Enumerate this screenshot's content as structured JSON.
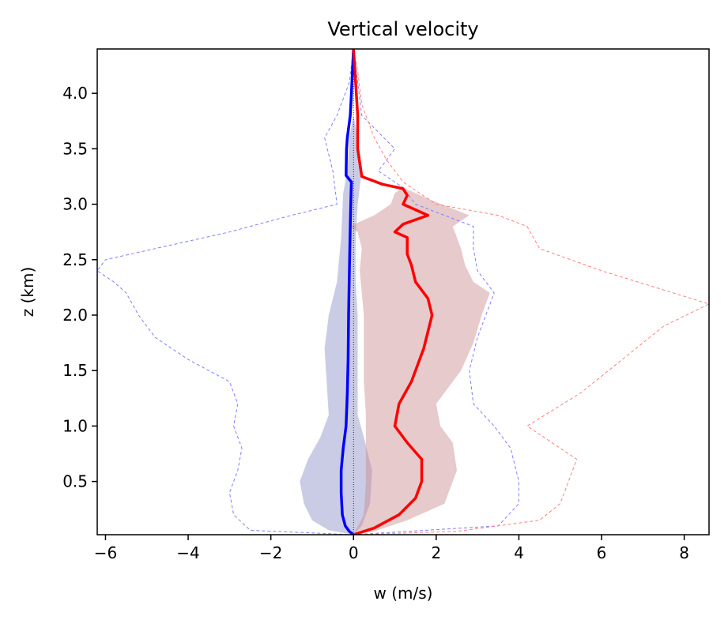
{
  "chart_data": {
    "type": "line",
    "title": "Vertical velocity",
    "xlabel": "w (m/s)",
    "ylabel": "z (km)",
    "xlim": [
      -6.2,
      8.6
    ],
    "ylim": [
      0.02,
      4.4
    ],
    "xticks": [
      -6,
      -4,
      -2,
      0,
      2,
      4,
      6,
      8
    ],
    "xtick_labels": [
      "−6",
      "−4",
      "−2",
      "0",
      "2",
      "4",
      "6",
      "8"
    ],
    "yticks": [
      0.5,
      1.0,
      1.5,
      2.0,
      2.5,
      3.0,
      3.5,
      4.0
    ],
    "ytick_labels": [
      "0.5",
      "1.0",
      "1.5",
      "2.0",
      "2.5",
      "3.0",
      "3.5",
      "4.0"
    ],
    "grid": false,
    "legend": "none",
    "colors": {
      "down_mean": "#0000ff",
      "up_mean": "#ff0000",
      "down_band": "#8a8fc6",
      "up_band": "#c98a8e",
      "down_extreme": "#8080ff",
      "up_extreme": "#ff8080",
      "zero_line": "#000000"
    },
    "series": [
      {
        "kind": "mean",
        "color_key": "down_mean",
        "points": [
          [
            0.0,
            0.02
          ],
          [
            -0.1,
            0.05
          ],
          [
            -0.2,
            0.1
          ],
          [
            -0.27,
            0.2
          ],
          [
            -0.3,
            0.4
          ],
          [
            -0.3,
            0.6
          ],
          [
            -0.25,
            0.8
          ],
          [
            -0.18,
            1.0
          ],
          [
            -0.15,
            1.3
          ],
          [
            -0.13,
            1.6
          ],
          [
            -0.12,
            2.0
          ],
          [
            -0.1,
            2.4
          ],
          [
            -0.08,
            2.8
          ],
          [
            -0.06,
            3.1
          ],
          [
            -0.05,
            3.2
          ],
          [
            -0.18,
            3.26
          ],
          [
            -0.17,
            3.5
          ],
          [
            -0.15,
            3.6
          ],
          [
            -0.08,
            3.8
          ],
          [
            -0.05,
            4.0
          ],
          [
            0.0,
            4.4
          ]
        ]
      },
      {
        "kind": "mean",
        "color_key": "up_mean",
        "points": [
          [
            0.0,
            0.02
          ],
          [
            0.5,
            0.08
          ],
          [
            1.1,
            0.2
          ],
          [
            1.5,
            0.35
          ],
          [
            1.65,
            0.5
          ],
          [
            1.65,
            0.7
          ],
          [
            1.3,
            0.85
          ],
          [
            1.0,
            1.0
          ],
          [
            1.1,
            1.2
          ],
          [
            1.4,
            1.4
          ],
          [
            1.7,
            1.7
          ],
          [
            1.9,
            2.0
          ],
          [
            1.8,
            2.15
          ],
          [
            1.5,
            2.3
          ],
          [
            1.4,
            2.45
          ],
          [
            1.3,
            2.55
          ],
          [
            1.3,
            2.7
          ],
          [
            1.0,
            2.75
          ],
          [
            1.2,
            2.82
          ],
          [
            1.8,
            2.9
          ],
          [
            1.2,
            3.0
          ],
          [
            1.3,
            3.08
          ],
          [
            1.2,
            3.14
          ],
          [
            0.7,
            3.18
          ],
          [
            0.2,
            3.25
          ],
          [
            0.1,
            3.5
          ],
          [
            0.1,
            3.8
          ],
          [
            0.05,
            4.1
          ],
          [
            0.0,
            4.4
          ]
        ]
      },
      {
        "kind": "band",
        "color_key": "down_band",
        "lower": [
          [
            0,
            0.02
          ],
          [
            -0.6,
            0.06
          ],
          [
            -1.0,
            0.15
          ],
          [
            -1.2,
            0.3
          ],
          [
            -1.3,
            0.5
          ],
          [
            -1.1,
            0.7
          ],
          [
            -0.8,
            0.9
          ],
          [
            -0.6,
            1.1
          ],
          [
            -0.65,
            1.4
          ],
          [
            -0.7,
            1.7
          ],
          [
            -0.6,
            2.0
          ],
          [
            -0.4,
            2.3
          ],
          [
            -0.3,
            2.7
          ],
          [
            -0.25,
            3.1
          ],
          [
            -0.15,
            3.3
          ],
          [
            -0.1,
            3.6
          ],
          [
            0,
            3.8
          ]
        ],
        "upper": [
          [
            0,
            3.8
          ],
          [
            0.1,
            3.6
          ],
          [
            0.2,
            3.3
          ],
          [
            0.1,
            3.0
          ],
          [
            0.05,
            2.7
          ],
          [
            0.05,
            2.3
          ],
          [
            0.1,
            2.0
          ],
          [
            0.1,
            1.7
          ],
          [
            0.1,
            1.4
          ],
          [
            0.1,
            1.1
          ],
          [
            0.25,
            0.9
          ],
          [
            0.45,
            0.6
          ],
          [
            0.4,
            0.3
          ],
          [
            0.2,
            0.1
          ],
          [
            0,
            0.02
          ]
        ]
      },
      {
        "kind": "band",
        "color_key": "up_band",
        "lower": [
          [
            0,
            0.02
          ],
          [
            0.25,
            0.2
          ],
          [
            0.3,
            0.5
          ],
          [
            0.3,
            0.8
          ],
          [
            0.3,
            1.1
          ],
          [
            0.25,
            1.4
          ],
          [
            0.25,
            1.7
          ],
          [
            0.25,
            2.0
          ],
          [
            0.2,
            2.2
          ],
          [
            0.15,
            2.4
          ],
          [
            0.2,
            2.6
          ],
          [
            0.1,
            2.75
          ],
          [
            -0.1,
            2.8
          ],
          [
            0.5,
            2.9
          ],
          [
            0.9,
            3.0
          ],
          [
            1.0,
            3.1
          ],
          [
            1.2,
            3.15
          ]
        ],
        "upper": [
          [
            1.2,
            3.15
          ],
          [
            1.8,
            3.05
          ],
          [
            2.8,
            2.9
          ],
          [
            2.4,
            2.8
          ],
          [
            2.6,
            2.6
          ],
          [
            2.7,
            2.45
          ],
          [
            2.9,
            2.3
          ],
          [
            3.3,
            2.2
          ],
          [
            3.1,
            2.0
          ],
          [
            2.9,
            1.75
          ],
          [
            2.6,
            1.5
          ],
          [
            2.0,
            1.2
          ],
          [
            2.1,
            1.0
          ],
          [
            2.4,
            0.85
          ],
          [
            2.5,
            0.6
          ],
          [
            2.2,
            0.3
          ],
          [
            1.3,
            0.15
          ],
          [
            0.5,
            0.05
          ],
          [
            0,
            0.02
          ]
        ]
      },
      {
        "kind": "extreme",
        "color_key": "down_extreme",
        "points": [
          [
            0,
            0.02
          ],
          [
            -2.5,
            0.06
          ],
          [
            -2.9,
            0.2
          ],
          [
            -3.0,
            0.4
          ],
          [
            -2.8,
            0.6
          ],
          [
            -2.7,
            0.8
          ],
          [
            -2.9,
            1.0
          ],
          [
            -2.8,
            1.2
          ],
          [
            -3.0,
            1.4
          ],
          [
            -4.0,
            1.6
          ],
          [
            -4.8,
            1.8
          ],
          [
            -5.2,
            2.0
          ],
          [
            -5.5,
            2.2
          ],
          [
            -5.8,
            2.3
          ],
          [
            -6.2,
            2.4
          ],
          [
            -6.0,
            2.5
          ],
          [
            -3.0,
            2.75
          ],
          [
            -1.5,
            2.9
          ],
          [
            -0.4,
            3.0
          ],
          [
            -0.5,
            3.3
          ],
          [
            -0.7,
            3.6
          ],
          [
            -0.4,
            3.8
          ],
          [
            -0.1,
            4.1
          ],
          [
            0,
            4.4
          ]
        ]
      },
      {
        "kind": "extreme",
        "color_key": "down_extreme",
        "points": [
          [
            0,
            0.02
          ],
          [
            3.5,
            0.1
          ],
          [
            4.0,
            0.3
          ],
          [
            4.0,
            0.5
          ],
          [
            3.8,
            0.8
          ],
          [
            3.4,
            1.0
          ],
          [
            2.9,
            1.2
          ],
          [
            2.8,
            1.5
          ],
          [
            3.0,
            1.8
          ],
          [
            3.2,
            2.0
          ],
          [
            3.4,
            2.2
          ],
          [
            3.0,
            2.4
          ],
          [
            2.9,
            2.6
          ],
          [
            2.9,
            2.8
          ],
          [
            1.5,
            3.0
          ],
          [
            1.2,
            3.15
          ],
          [
            0.6,
            3.3
          ],
          [
            1.0,
            3.5
          ],
          [
            0.2,
            3.8
          ],
          [
            0.1,
            4.1
          ],
          [
            0,
            4.4
          ]
        ]
      },
      {
        "kind": "extreme",
        "color_key": "up_extreme",
        "points": [
          [
            0,
            0.02
          ],
          [
            2.5,
            0.05
          ],
          [
            4.5,
            0.15
          ],
          [
            5.0,
            0.3
          ],
          [
            5.4,
            0.7
          ],
          [
            4.2,
            1.0
          ],
          [
            5.5,
            1.3
          ],
          [
            6.5,
            1.6
          ],
          [
            7.5,
            1.9
          ],
          [
            8.6,
            2.1
          ],
          [
            6.0,
            2.4
          ],
          [
            4.5,
            2.6
          ],
          [
            4.2,
            2.8
          ],
          [
            3.5,
            2.9
          ],
          [
            2.0,
            3.0
          ],
          [
            1.2,
            3.2
          ],
          [
            0.8,
            3.4
          ],
          [
            0.5,
            3.6
          ],
          [
            0.2,
            3.9
          ],
          [
            0.1,
            4.2
          ],
          [
            0,
            4.4
          ]
        ]
      }
    ]
  }
}
